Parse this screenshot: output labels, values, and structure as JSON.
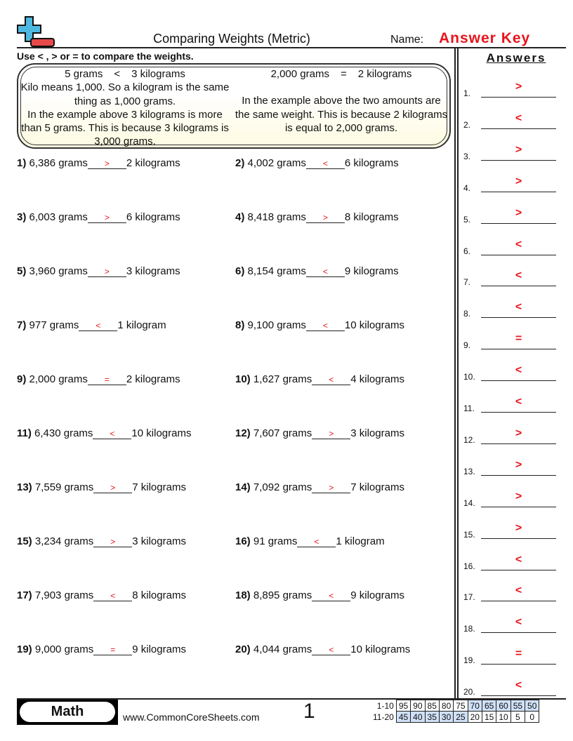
{
  "header": {
    "title": "Comparing Weights (Metric)",
    "name_label": "Name:",
    "answer_key": "Answer Key"
  },
  "instructions": "Use < , > or = to compare the weights.",
  "example": {
    "left": {
      "a": "5 grams",
      "op": "<",
      "b": "3 kilograms",
      "lines": [
        "Kilo means 1,000. So a kilogram is the same thing as 1,000 grams.",
        "In the example above 3 kilograms is more than 5 grams. This is because 3 kilograms is 3,000 grams."
      ]
    },
    "right": {
      "a": "2,000 grams",
      "op": "=",
      "b": "2 kilograms",
      "lines": [
        "In the example above the two amounts are the same weight. This is because 2 kilograms is equal to 2,000 grams."
      ]
    }
  },
  "problems": [
    {
      "num": "1)",
      "left": "6,386 grams",
      "answer": ">",
      "right": "2 kilograms"
    },
    {
      "num": "2)",
      "left": "4,002 grams",
      "answer": "<",
      "right": "6 kilograms"
    },
    {
      "num": "3)",
      "left": "6,003 grams",
      "answer": ">",
      "right": "6 kilograms"
    },
    {
      "num": "4)",
      "left": "8,418 grams",
      "answer": ">",
      "right": "8 kilograms"
    },
    {
      "num": "5)",
      "left": "3,960 grams",
      "answer": ">",
      "right": "3 kilograms"
    },
    {
      "num": "6)",
      "left": "8,154 grams",
      "answer": "<",
      "right": "9 kilograms"
    },
    {
      "num": "7)",
      "left": "977 grams",
      "answer": "<",
      "right": "1 kilogram"
    },
    {
      "num": "8)",
      "left": "9,100 grams",
      "answer": "<",
      "right": "10 kilograms"
    },
    {
      "num": "9)",
      "left": "2,000 grams",
      "answer": "=",
      "right": "2 kilograms"
    },
    {
      "num": "10)",
      "left": "1,627 grams",
      "answer": "<",
      "right": "4 kilograms"
    },
    {
      "num": "11)",
      "left": "6,430 grams",
      "answer": "<",
      "right": "10 kilograms"
    },
    {
      "num": "12)",
      "left": "7,607 grams",
      "answer": ">",
      "right": "3 kilograms"
    },
    {
      "num": "13)",
      "left": "7,559 grams",
      "answer": ">",
      "right": "7 kilograms"
    },
    {
      "num": "14)",
      "left": "7,092 grams",
      "answer": ">",
      "right": "7 kilograms"
    },
    {
      "num": "15)",
      "left": "3,234 grams",
      "answer": ">",
      "right": "3 kilograms"
    },
    {
      "num": "16)",
      "left": "91 grams",
      "answer": "<",
      "right": "1 kilogram"
    },
    {
      "num": "17)",
      "left": "7,903 grams",
      "answer": "<",
      "right": "8 kilograms"
    },
    {
      "num": "18)",
      "left": "8,895 grams",
      "answer": "<",
      "right": "9 kilograms"
    },
    {
      "num": "19)",
      "left": "9,000 grams",
      "answer": "=",
      "right": "9 kilograms"
    },
    {
      "num": "20)",
      "left": "4,044 grams",
      "answer": "<",
      "right": "10 kilograms"
    }
  ],
  "answers": {
    "title": "Answers",
    "items": [
      ">",
      "<",
      ">",
      ">",
      ">",
      "<",
      "<",
      "<",
      "=",
      "<",
      "<",
      ">",
      ">",
      ">",
      ">",
      "<",
      "<",
      "<",
      "=",
      "<"
    ]
  },
  "footer": {
    "subject": "Math",
    "site": "www.CommonCoreSheets.com",
    "page": "1",
    "score_rows": [
      {
        "label": "1-10",
        "values": [
          "95",
          "90",
          "85",
          "80",
          "75",
          "70",
          "65",
          "60",
          "55",
          "50"
        ]
      },
      {
        "label": "11-20",
        "values": [
          "45",
          "40",
          "35",
          "30",
          "25",
          "20",
          "15",
          "10",
          "5",
          "0"
        ]
      }
    ]
  },
  "colors": {
    "answer_red": "#e8141b",
    "logo_blue": "#4fb8e0",
    "logo_red": "#e84a4a",
    "score_highlight": "#cfe0f7"
  }
}
